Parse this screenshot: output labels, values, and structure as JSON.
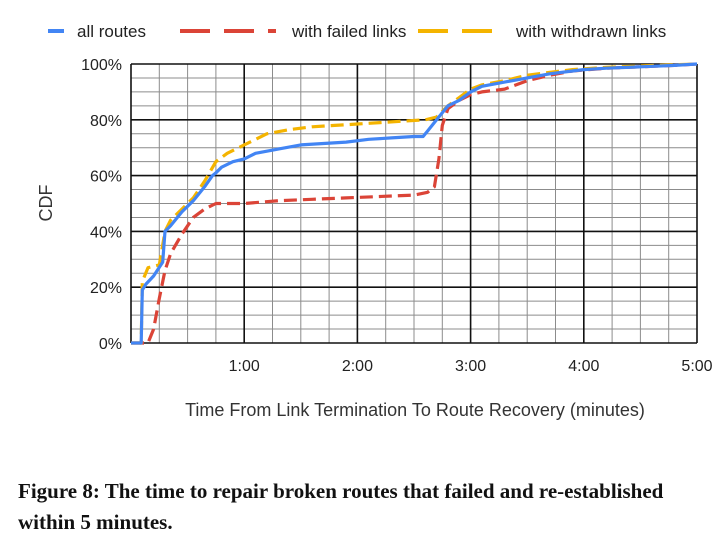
{
  "caption": "Figure 8:  The time to repair broken routes that failed and re-established within 5 minutes.",
  "chart_data": {
    "type": "line",
    "title": "",
    "xlabel": "Time From Link Termination To Route Recovery (minutes)",
    "ylabel": "CDF",
    "xlim": [
      0,
      5
    ],
    "ylim": [
      0,
      100
    ],
    "x_ticks": [
      {
        "value": 1,
        "label": "1:00"
      },
      {
        "value": 2,
        "label": "2:00"
      },
      {
        "value": 3,
        "label": "3:00"
      },
      {
        "value": 4,
        "label": "4:00"
      },
      {
        "value": 5,
        "label": "5:00"
      }
    ],
    "y_ticks": [
      {
        "value": 0,
        "label": "0%"
      },
      {
        "value": 20,
        "label": "20%"
      },
      {
        "value": 40,
        "label": "40%"
      },
      {
        "value": 60,
        "label": "60%"
      },
      {
        "value": 80,
        "label": "80%"
      },
      {
        "value": 100,
        "label": "100%"
      }
    ],
    "grid": true,
    "minor_grid": {
      "x_step": 0.25,
      "y_step": 5
    },
    "legend_position": "top",
    "series": [
      {
        "name": "all routes",
        "color": "#4285f4",
        "dash": "solid",
        "x": [
          0.0,
          0.09,
          0.1,
          0.13,
          0.2,
          0.28,
          0.3,
          0.35,
          0.45,
          0.55,
          0.65,
          0.72,
          0.75,
          0.8,
          0.9,
          1.0,
          1.1,
          1.3,
          1.5,
          1.7,
          1.9,
          2.1,
          2.3,
          2.5,
          2.58,
          2.62,
          2.7,
          2.8,
          2.9,
          3.0,
          3.1,
          3.3,
          3.5,
          3.7,
          3.9,
          4.0,
          4.2,
          4.5,
          4.8,
          5.0
        ],
        "values": [
          0,
          0,
          19,
          21,
          24,
          29,
          40,
          42,
          47,
          51,
          56,
          60,
          61,
          63,
          65,
          66,
          68,
          69.5,
          71,
          71.5,
          72,
          73,
          73.5,
          74,
          74,
          76,
          80,
          85,
          87,
          90,
          92,
          93.5,
          95,
          96.5,
          97.5,
          98,
          98.5,
          99,
          99.5,
          100
        ]
      },
      {
        "name": "with failed links",
        "color": "#db4437",
        "dash": "dashed",
        "x": [
          0.0,
          0.15,
          0.2,
          0.25,
          0.3,
          0.35,
          0.45,
          0.55,
          0.65,
          0.75,
          1.0,
          1.3,
          1.6,
          1.9,
          2.2,
          2.5,
          2.62,
          2.68,
          2.72,
          2.75,
          2.8,
          2.9,
          3.0,
          3.1,
          3.3,
          3.5,
          3.7,
          3.9,
          4.2,
          4.5,
          4.8,
          5.0
        ],
        "values": [
          0,
          0,
          5,
          16,
          26,
          32,
          39,
          45,
          48,
          50,
          50,
          51,
          51.5,
          52,
          52.5,
          53,
          54,
          56,
          66,
          78,
          84,
          87,
          89,
          90,
          91,
          94,
          96,
          97.5,
          98.5,
          99,
          99.5,
          100
        ]
      },
      {
        "name": "with withdrawn links",
        "color": "#f4b400",
        "dash": "dashed",
        "x": [
          0.0,
          0.09,
          0.1,
          0.15,
          0.25,
          0.3,
          0.35,
          0.45,
          0.55,
          0.65,
          0.75,
          0.85,
          1.0,
          1.2,
          1.4,
          1.6,
          1.8,
          2.0,
          2.2,
          2.4,
          2.6,
          2.7,
          2.8,
          2.9,
          3.0,
          3.1,
          3.3,
          3.5,
          3.7,
          3.9,
          4.2,
          4.5,
          4.8,
          5.0
        ],
        "values": [
          0,
          0,
          22,
          27,
          28,
          40,
          44,
          48,
          52,
          58,
          65,
          68,
          71,
          75,
          76.5,
          77.5,
          78,
          78.5,
          79,
          79.5,
          80,
          81,
          85,
          88,
          91,
          92.5,
          94,
          96,
          97,
          98,
          98.8,
          99.3,
          99.7,
          100
        ]
      }
    ]
  }
}
